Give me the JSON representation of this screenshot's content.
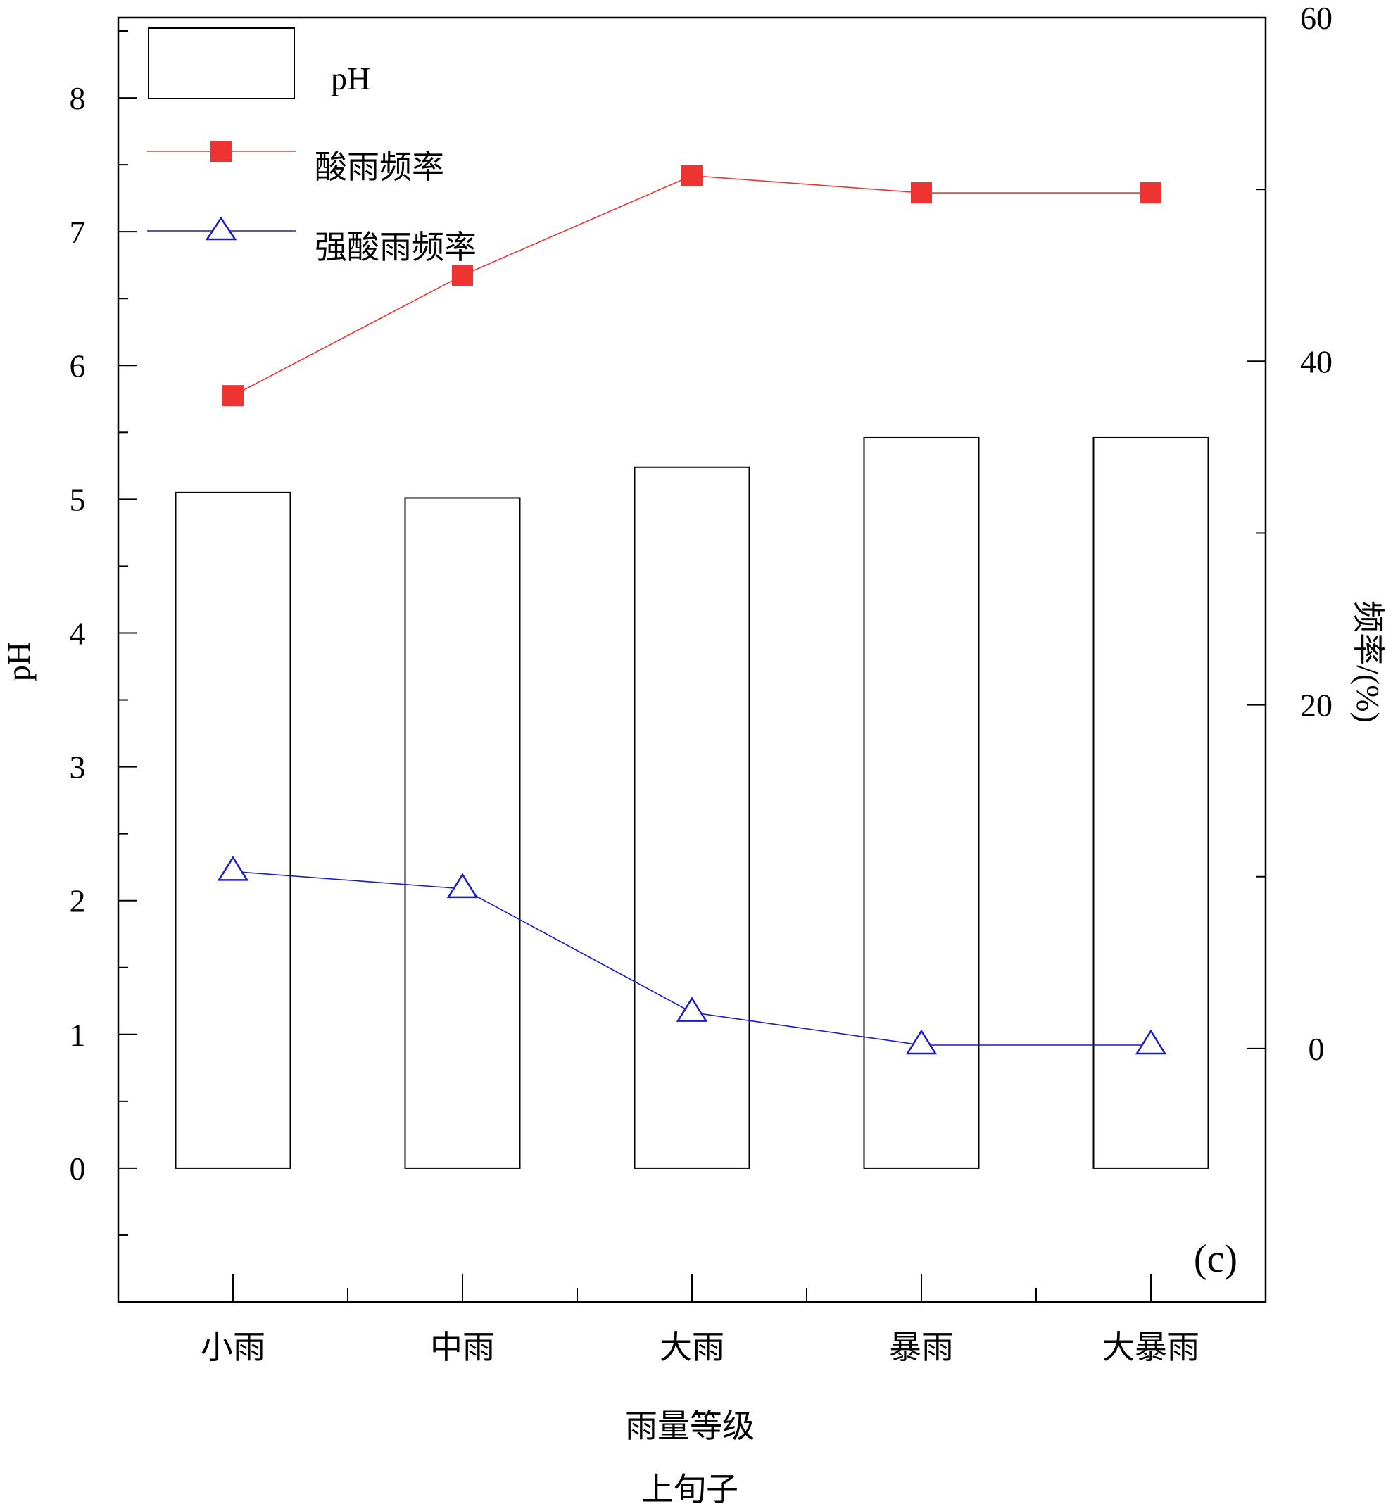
{
  "chart_data": {
    "type": "bar",
    "panel_label": "(c)",
    "categories": [
      "小雨",
      "中雨",
      "大雨",
      "暴雨",
      "大暴雨"
    ],
    "xlabel": "雨量等级",
    "caption": "上旬子",
    "y_left": {
      "label": "pH",
      "ylim": [
        -1,
        8.6
      ],
      "ticks": [
        0,
        1,
        2,
        3,
        4,
        5,
        6,
        7,
        8
      ]
    },
    "y_right": {
      "label": "频率/(%)",
      "ylim": [
        -14.75,
        60
      ],
      "ticks": [
        0,
        20,
        40,
        60
      ]
    },
    "series": [
      {
        "name": "pH",
        "kind": "bar",
        "axis": "left",
        "values": [
          5.05,
          5.01,
          5.24,
          5.46,
          5.46
        ],
        "color": "#000000"
      },
      {
        "name": "酸雨频率",
        "kind": "line",
        "axis": "right",
        "marker": "square",
        "values": [
          38.0,
          45.0,
          50.8,
          49.8,
          49.8
        ],
        "color": "#ee3333"
      },
      {
        "name": "强酸雨频率",
        "kind": "line",
        "axis": "right",
        "marker": "triangle",
        "values": [
          10.3,
          9.3,
          2.1,
          0.2,
          0.2
        ],
        "color": "#1a1acc"
      }
    ],
    "legend_position": "top-left",
    "grid": false
  }
}
